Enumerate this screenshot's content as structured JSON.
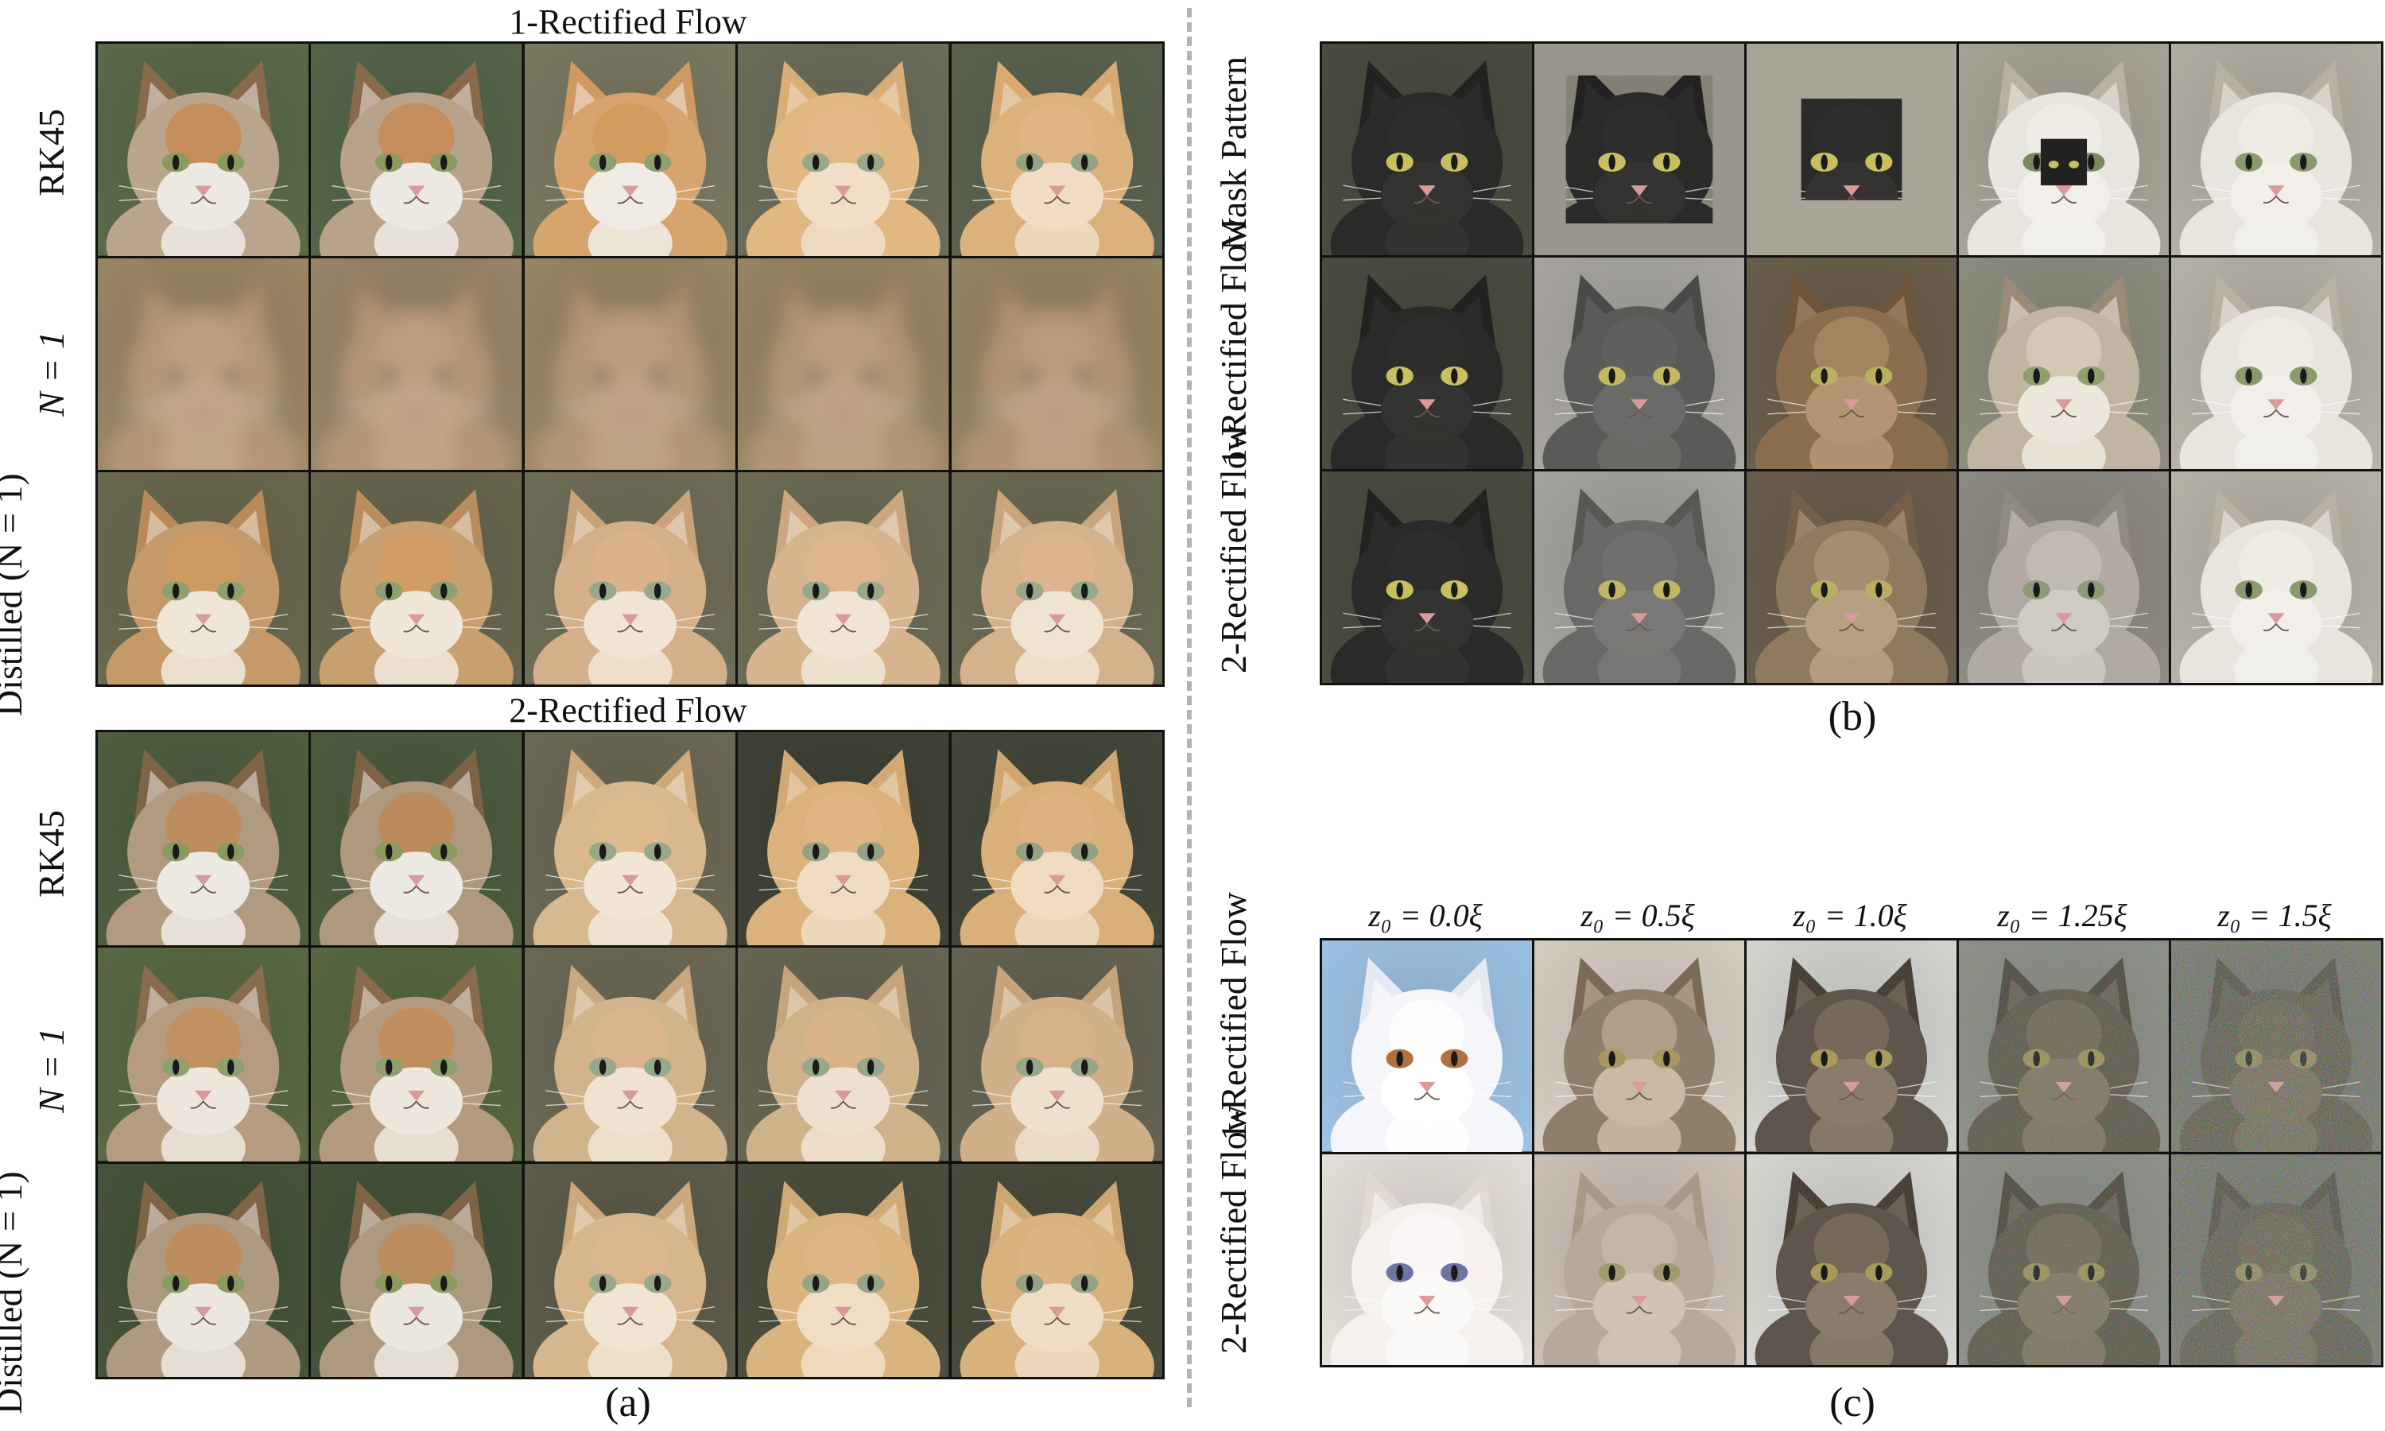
{
  "panel_a": {
    "top_title": "1-Rectified Flow",
    "bottom_title": "2-Rectified Flow",
    "caption": "(a)",
    "row_labels_top": [
      "RK45",
      "N = 1",
      "Distilled (N = 1)"
    ],
    "row_labels_bottom": [
      "RK45",
      "N = 1",
      "Distilled (N = 1)"
    ],
    "rows_top": [
      [
        {
          "bg": "#5b6b4a",
          "fur": "#b9a58c",
          "face": "#ece8e2",
          "ear": "#8a6a4c",
          "eye": "#8b9a5e",
          "mask": "#c88850"
        },
        {
          "bg": "#55664a",
          "fur": "#b8a38a",
          "face": "#ece8e2",
          "ear": "#8a6a4c",
          "eye": "#8b9a5e",
          "mask": "#c88850"
        },
        {
          "bg": "#7b7a62",
          "fur": "#d6a46c",
          "face": "#f0ebe4",
          "ear": "#cf9a62",
          "eye": "#8fa070",
          "mask": "#d29a5c"
        },
        {
          "bg": "#6b6e5c",
          "fur": "#e1b882",
          "face": "#f0dec6",
          "ear": "#d9ad78",
          "eye": "#9aa88a",
          "mask": "#e3b888"
        },
        {
          "bg": "#5c6350",
          "fur": "#dcb27c",
          "face": "#efdcc2",
          "ear": "#d7aa74",
          "eye": "#94a384",
          "mask": "#e0b585"
        }
      ],
      [
        {
          "bg": "#9b8866",
          "fur": "#b49676",
          "face": "#c3a588",
          "ear": "#a68768",
          "eye": "#b59b7e",
          "mask": "#c0a180",
          "blur": true
        },
        {
          "bg": "#9a876a",
          "fur": "#b39575",
          "face": "#c2a487",
          "ear": "#a58667",
          "eye": "#b49a7d",
          "mask": "#bf9f7f",
          "blur": true
        },
        {
          "bg": "#998866",
          "fur": "#b29574",
          "face": "#c1a386",
          "ear": "#a48566",
          "eye": "#b3997c",
          "mask": "#be9e7e",
          "blur": true
        },
        {
          "bg": "#988765",
          "fur": "#b19473",
          "face": "#c0a285",
          "ear": "#a38465",
          "eye": "#b2987b",
          "mask": "#bd9d7d",
          "blur": true
        },
        {
          "bg": "#978664",
          "fur": "#b09372",
          "face": "#bfa184",
          "ear": "#a28364",
          "eye": "#b1977a",
          "mask": "#bc9c7c",
          "blur": true
        }
      ],
      [
        {
          "bg": "#6a6a50",
          "fur": "#c49a6a",
          "face": "#efe6d8",
          "ear": "#b88a5a",
          "eye": "#8ea070",
          "mask": "#d09a60"
        },
        {
          "bg": "#686850",
          "fur": "#c8a070",
          "face": "#efe6d8",
          "ear": "#bb8c5c",
          "eye": "#8ea070",
          "mask": "#d39c62"
        },
        {
          "bg": "#6e6e58",
          "fur": "#d3b08a",
          "face": "#f0e4d2",
          "ear": "#c9a27a",
          "eye": "#98a88a",
          "mask": "#dcb48c"
        },
        {
          "bg": "#6c6c56",
          "fur": "#d6b48e",
          "face": "#f0e4d4",
          "ear": "#cca67e",
          "eye": "#98a88a",
          "mask": "#deb690"
        },
        {
          "bg": "#6b6b55",
          "fur": "#d4b28c",
          "face": "#efe3d2",
          "ear": "#caa47c",
          "eye": "#97a789",
          "mask": "#ddb58f"
        }
      ]
    ],
    "rows_bottom": [
      [
        {
          "bg": "#4f5e40",
          "fur": "#b09a80",
          "face": "#ece8e2",
          "ear": "#7f6448",
          "eye": "#8b9a5e",
          "mask": "#c08a58"
        },
        {
          "bg": "#4d5c3f",
          "fur": "#ae987e",
          "face": "#ece8e2",
          "ear": "#7d6246",
          "eye": "#8b9a5e",
          "mask": "#be8856"
        },
        {
          "bg": "#6c6a54",
          "fur": "#d8b88e",
          "face": "#f1e6d6",
          "ear": "#cfa87c",
          "eye": "#9aa88a",
          "mask": "#dfb98e"
        },
        {
          "bg": "#3f4235",
          "fur": "#dcb27c",
          "face": "#efdcc2",
          "ear": "#d2a874",
          "eye": "#94a384",
          "mask": "#e0b585"
        },
        {
          "bg": "#44483a",
          "fur": "#d9b07a",
          "face": "#eedbc1",
          "ear": "#cfa672",
          "eye": "#93a283",
          "mask": "#ddb283"
        }
      ],
      [
        {
          "bg": "#5a6a44",
          "fur": "#b59c80",
          "face": "#ece6dc",
          "ear": "#8a6c4e",
          "eye": "#8ea070",
          "mask": "#c68e5a"
        },
        {
          "bg": "#586842",
          "fur": "#b49b7f",
          "face": "#ece6dc",
          "ear": "#896b4d",
          "eye": "#8ea070",
          "mask": "#c48c58"
        },
        {
          "bg": "#6c6a56",
          "fur": "#d2b48c",
          "face": "#efe2d0",
          "ear": "#c8a67e",
          "eye": "#98a88a",
          "mask": "#dbb48c"
        },
        {
          "bg": "#686654",
          "fur": "#d0b28a",
          "face": "#eee0ce",
          "ear": "#c6a47c",
          "eye": "#97a789",
          "mask": "#d9b28a"
        },
        {
          "bg": "#666452",
          "fur": "#cfb089",
          "face": "#ede0cd",
          "ear": "#c5a37b",
          "eye": "#96a688",
          "mask": "#d8b189"
        }
      ],
      [
        {
          "bg": "#46543a",
          "fur": "#ae9a80",
          "face": "#ebe6de",
          "ear": "#806448",
          "eye": "#8b9a5e",
          "mask": "#c08a58"
        },
        {
          "bg": "#45533a",
          "fur": "#ad997f",
          "face": "#ebe6de",
          "ear": "#7f6347",
          "eye": "#8b9a5e",
          "mask": "#bf8957"
        },
        {
          "bg": "#5e5c4a",
          "fur": "#d6b68c",
          "face": "#f0e4d2",
          "ear": "#cca87c",
          "eye": "#98a88a",
          "mask": "#ddb68c"
        },
        {
          "bg": "#4c4e3e",
          "fur": "#dab47e",
          "face": "#efddc4",
          "ear": "#d0aa76",
          "eye": "#95a485",
          "mask": "#dfb687"
        },
        {
          "bg": "#4a4c3c",
          "fur": "#d8b27c",
          "face": "#eedcc3",
          "ear": "#cea874",
          "eye": "#94a384",
          "mask": "#ddb485"
        }
      ]
    ]
  },
  "panel_b": {
    "caption": "(b)",
    "row_labels": [
      "Mask Pattern",
      "1-Rectified Flow",
      "2-Rectified Flow"
    ],
    "rows": [
      [
        {
          "bg": "#4a4c40",
          "fur": "#2a2a28",
          "face": "#333331",
          "ear": "#222220",
          "eye": "#c8c060",
          "mask": "#2e2e2c"
        },
        {
          "bg": "#8e8a7e",
          "fur": "#2a2a28",
          "face": "#333331",
          "ear": "#222220",
          "eye": "#c8c060",
          "mask": "#2e2e2c",
          "overlay": "#9a958a",
          "hole": 0.7
        },
        {
          "bg": "#aaa597",
          "fur": "#2a2a28",
          "face": "#333331",
          "ear": "#222220",
          "eye": "#c8c060",
          "mask": "#2e2e2c",
          "overlay": "#a9a498",
          "hole": 0.48
        },
        {
          "bg": "#a9a497",
          "fur": "#e8e4de",
          "face": "#f2efea",
          "ear": "#b9b0a4",
          "eye": "#7a8a5e",
          "mask": "#f0ece6",
          "inset": "#222220",
          "insetSize": 0.22
        },
        {
          "bg": "#b5b0a4",
          "fur": "#e8e4de",
          "face": "#f2efea",
          "ear": "#b9b0a4",
          "eye": "#8a9a6e",
          "mask": "#f0ece6"
        }
      ],
      [
        {
          "bg": "#4a4c40",
          "fur": "#2a2a28",
          "face": "#333331",
          "ear": "#222220",
          "eye": "#c8c060",
          "mask": "#2e2e2c"
        },
        {
          "bg": "#a9a7a0",
          "fur": "#5a5a58",
          "face": "#6a6a68",
          "ear": "#4a4a48",
          "eye": "#c2b864",
          "mask": "#626260"
        },
        {
          "bg": "#6b5e4c",
          "fur": "#8a6e4e",
          "face": "#b49472",
          "ear": "#6e563c",
          "eye": "#b8b060",
          "mask": "#a88a66"
        },
        {
          "bg": "#8e8e80",
          "fur": "#c2b4a2",
          "face": "#ece6dc",
          "ear": "#9a8a76",
          "eye": "#8ea070",
          "mask": "#d8ccbc"
        },
        {
          "bg": "#b8b4a8",
          "fur": "#e8e4de",
          "face": "#f2efea",
          "ear": "#b9b0a4",
          "eye": "#8a9a6e",
          "mask": "#f0ece6"
        }
      ],
      [
        {
          "bg": "#4a4c40",
          "fur": "#2a2a28",
          "face": "#333331",
          "ear": "#222220",
          "eye": "#c8c060",
          "mask": "#2e2e2c"
        },
        {
          "bg": "#a6a49e",
          "fur": "#6a6866",
          "face": "#7a7876",
          "ear": "#5a5856",
          "eye": "#c2b864",
          "mask": "#727070"
        },
        {
          "bg": "#6a5e4e",
          "fur": "#8e7a5e",
          "face": "#b6a082",
          "ear": "#74604a",
          "eye": "#b8b060",
          "mask": "#aa9274"
        },
        {
          "bg": "#8f8c84",
          "fur": "#b0aaa2",
          "face": "#cfcac2",
          "ear": "#908a82",
          "eye": "#8e9a7a",
          "mask": "#c4beb6"
        },
        {
          "bg": "#b8b4a8",
          "fur": "#e8e4de",
          "face": "#f2efea",
          "ear": "#b9b0a4",
          "eye": "#8a9a6e",
          "mask": "#f0ece6"
        }
      ]
    ]
  },
  "panel_c": {
    "caption": "(c)",
    "col_labels": [
      "z₀ = 0.0ξ",
      "z₀ = 0.5ξ",
      "z₀ = 1.0ξ",
      "z₀ = 1.25ξ",
      "z₀ = 1.5ξ"
    ],
    "row_labels": [
      "1-Rectified Flow",
      "2-Rectified Flow"
    ],
    "rows": [
      [
        {
          "bg": "#9fc3e6",
          "fur": "#f4f6fa",
          "face": "#ffffff",
          "ear": "#e6e9ef",
          "eye": "#b07040",
          "mask": "#ffffff"
        },
        {
          "bg": "#d8cfc4",
          "fur": "#8e7e6c",
          "face": "#c8b8a4",
          "ear": "#7a6a58",
          "eye": "#a89860",
          "mask": "#b8a890"
        },
        {
          "bg": "#d6d6d2",
          "fur": "#5e564c",
          "face": "#8a7c6a",
          "ear": "#4a4238",
          "eye": "#a89a58",
          "mask": "#7c6e5c"
        },
        {
          "bg": "#8a8a84",
          "fur": "#5a5448",
          "face": "#7e7262",
          "ear": "#48423a",
          "eye": "#9a8e58",
          "mask": "#746858",
          "noise": 0.35
        },
        {
          "bg": "#6e6e66",
          "fur": "#585246",
          "face": "#6e6456",
          "ear": "#48423a",
          "eye": "#8e845a",
          "mask": "#665c4e",
          "noise": 0.6
        }
      ],
      [
        {
          "bg": "#e8e2dc",
          "fur": "#f4f1ee",
          "face": "#fbf9f7",
          "ear": "#e2dad2",
          "eye": "#6e74a0",
          "mask": "#faf8f6"
        },
        {
          "bg": "#cec2b8",
          "fur": "#b8a89c",
          "face": "#d0c2b6",
          "ear": "#a89888",
          "eye": "#a49a70",
          "mask": "#c6b8ac"
        },
        {
          "bg": "#d8d8d4",
          "fur": "#5e564c",
          "face": "#8a7c6a",
          "ear": "#4a4238",
          "eye": "#a89a58",
          "mask": "#7c6e5c"
        },
        {
          "bg": "#8a8a84",
          "fur": "#5a5448",
          "face": "#7e7262",
          "ear": "#48423a",
          "eye": "#9a8e58",
          "mask": "#746858",
          "noise": 0.35
        },
        {
          "bg": "#6e6e66",
          "fur": "#585246",
          "face": "#6e6456",
          "ear": "#48423a",
          "eye": "#8e845a",
          "mask": "#665c4e",
          "noise": 0.6
        }
      ]
    ]
  }
}
